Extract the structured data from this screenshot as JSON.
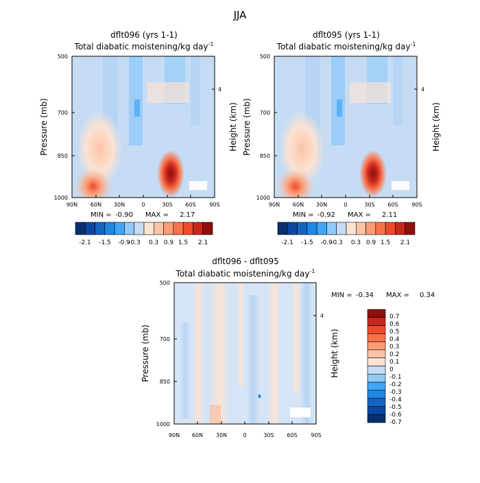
{
  "page_title": "JJA",
  "palettes": {
    "main": [
      "#08306b",
      "#0d47a1",
      "#1565c0",
      "#1e88e5",
      "#42a5f5",
      "#90caf9",
      "#c6dcf4",
      "#fbe3d4",
      "#fcc4a6",
      "#fc9d76",
      "#f9734a",
      "#ee4a2c",
      "#c9271c",
      "#8e0f0b"
    ],
    "diff": [
      "#08306b",
      "#0d47a1",
      "#1565c0",
      "#1e88e5",
      "#42a5f5",
      "#90caf9",
      "#c6dcf4",
      "#fbe3d4",
      "#fcc4a6",
      "#fc9d76",
      "#f9734a",
      "#ee4a2c",
      "#c9271c",
      "#8e0f0b"
    ]
  },
  "chart_data": [
    {
      "type": "heatmap",
      "title": "dflt096 (yrs 1-1)",
      "subtitle": "Total diabatic moistening/kg day",
      "superscript": "-1",
      "ylabel": "Pressure (mb)",
      "right_ylabel": "Height (km)",
      "right_ticks": [
        "4"
      ],
      "x_ticks": [
        "90N",
        "60N",
        "30N",
        "0",
        "30S",
        "60S",
        "90S"
      ],
      "y_ticks": [
        "500",
        "700",
        "850",
        "1000"
      ],
      "min_label": "MIN =",
      "min_value": "-0.90",
      "max_label": "MAX =",
      "max_value": "2.17",
      "colorbar_labels": [
        "-2.1",
        "-1.5",
        "-0.9",
        "-0.3",
        "0.3",
        "0.9",
        "1.5",
        "2.1"
      ]
    },
    {
      "type": "heatmap",
      "title": "dflt095 (yrs 1-1)",
      "subtitle": "Total diabatic moistening/kg day",
      "superscript": "-1",
      "ylabel": "Pressure (mb)",
      "right_ylabel": "Height (km)",
      "right_ticks": [
        "4"
      ],
      "x_ticks": [
        "90N",
        "60N",
        "30N",
        "0",
        "30S",
        "60S",
        "90S"
      ],
      "y_ticks": [
        "500",
        "700",
        "850",
        "1000"
      ],
      "min_label": "MIN =",
      "min_value": "-0.92",
      "max_label": "MAX =",
      "max_value": "2.11",
      "colorbar_labels": [
        "-2.1",
        "-1.5",
        "-0.9",
        "-0.3",
        "0.3",
        "0.9",
        "1.5",
        "2.1"
      ]
    },
    {
      "type": "heatmap",
      "title": "dflt096 - dflt095",
      "subtitle": "Total diabatic moistening/kg day",
      "superscript": "-1",
      "ylabel": "Pressure (mb)",
      "right_ylabel": "Height (km)",
      "right_ticks": [
        "4"
      ],
      "x_ticks": [
        "90N",
        "60N",
        "30N",
        "0",
        "30S",
        "60S",
        "90S"
      ],
      "y_ticks": [
        "500",
        "700",
        "850",
        "1000"
      ],
      "min_label": "MIN =",
      "min_value": "-0.34",
      "max_label": "MAX =",
      "max_value": "0.34",
      "colorbar_labels": [
        "0.7",
        "0.6",
        "0.5",
        "0.4",
        "0.3",
        "0.2",
        "0.1",
        "0",
        "-0.1",
        "-0.2",
        "-0.3",
        "-0.4",
        "-0.5",
        "-0.6",
        "-0.7"
      ]
    }
  ]
}
